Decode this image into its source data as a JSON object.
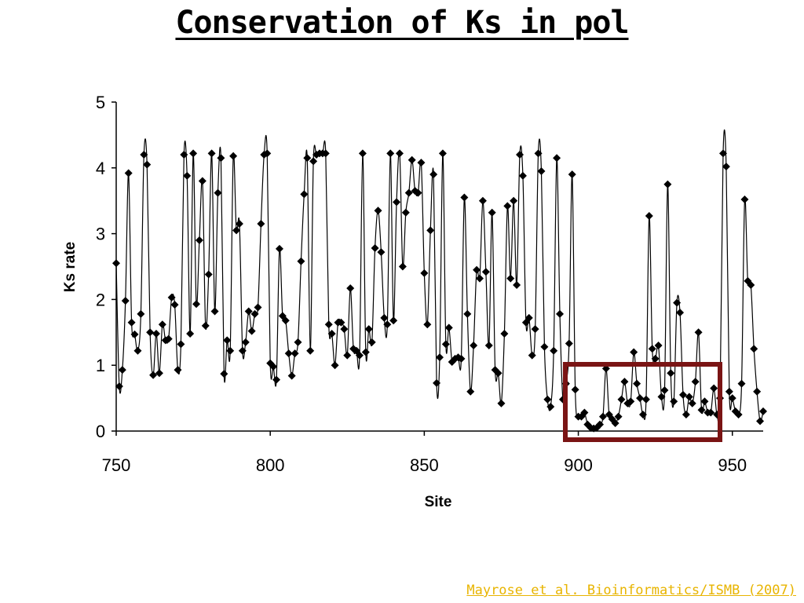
{
  "slide": {
    "title": "Conservation of Ks in pol",
    "citation": "Mayrose et al. Bioinformatics/ISMB (2007)"
  },
  "colors": {
    "series": "#000000",
    "highlight_box": "#7a1414",
    "citation": "#e8b400"
  },
  "chart_data": {
    "type": "line",
    "xlabel": "Site",
    "ylabel": "Ks rate",
    "xlim": [
      750,
      960
    ],
    "ylim": [
      0,
      5
    ],
    "xticks": [
      750,
      800,
      850,
      900,
      950
    ],
    "yticks": [
      0,
      1,
      2,
      3,
      4,
      5
    ],
    "grid": false,
    "legend": "none",
    "marker": "diamond",
    "series": [
      {
        "x_start": 750,
        "x_step": 1,
        "values": [
          2.55,
          0.68,
          0.93,
          1.98,
          3.92,
          1.65,
          1.47,
          1.22,
          1.78,
          4.2,
          4.05,
          1.5,
          0.85,
          1.48,
          0.88,
          1.62,
          1.38,
          1.4,
          2.03,
          1.92,
          0.93,
          1.32,
          4.2,
          3.88,
          1.48,
          4.22,
          1.93,
          2.9,
          3.8,
          1.6,
          2.38,
          4.22,
          1.82,
          3.62,
          4.15,
          0.87,
          1.38,
          1.22,
          4.18,
          3.05,
          3.15,
          1.22,
          1.35,
          1.82,
          1.52,
          1.78,
          1.88,
          3.15,
          4.2,
          4.22,
          1.03,
          0.98,
          0.78,
          2.77,
          1.75,
          1.68,
          1.18,
          0.84,
          1.18,
          1.35,
          2.58,
          3.6,
          4.15,
          1.22,
          4.1,
          4.2,
          4.22,
          4.22,
          4.22,
          1.62,
          1.48,
          1.0,
          1.65,
          1.65,
          1.55,
          1.15,
          2.17,
          1.25,
          1.22,
          1.15,
          4.22,
          1.2,
          1.55,
          1.35,
          2.78,
          3.35,
          2.72,
          1.72,
          1.62,
          4.22,
          1.68,
          3.48,
          4.22,
          2.5,
          3.32,
          3.62,
          4.12,
          3.65,
          3.62,
          4.08,
          2.4,
          1.62,
          3.05,
          3.9,
          0.73,
          1.12,
          4.22,
          1.32,
          1.57,
          1.05,
          1.1,
          1.12,
          1.1,
          3.55,
          1.78,
          0.6,
          1.3,
          2.45,
          2.32,
          3.5,
          2.42,
          1.3,
          3.32,
          0.93,
          0.88,
          0.42,
          1.48,
          3.42,
          2.32,
          3.5,
          2.22,
          4.2,
          3.88,
          1.65,
          1.72,
          1.15,
          1.55,
          4.22,
          3.95,
          1.28,
          0.48,
          0.37,
          1.22,
          4.15,
          1.78,
          0.48,
          0.72,
          1.33,
          3.9,
          0.63,
          0.22,
          0.22,
          0.28,
          0.1,
          0.05,
          0.04,
          0.05,
          0.1,
          0.22,
          0.95,
          0.25,
          0.18,
          0.12,
          0.22,
          0.48,
          0.75,
          0.42,
          0.45,
          1.2,
          0.72,
          0.5,
          0.25,
          0.48,
          3.27,
          1.25,
          1.1,
          1.3,
          0.52,
          0.62,
          3.75,
          0.88,
          0.45,
          1.95,
          1.8,
          0.55,
          0.25,
          0.52,
          0.42,
          0.75,
          1.5,
          0.32,
          0.45,
          0.28,
          0.28,
          0.65,
          0.25,
          0.5,
          4.22,
          4.02,
          0.6,
          0.5,
          0.3,
          0.25,
          0.72,
          3.52,
          2.28,
          2.22,
          1.25,
          0.6,
          0.15,
          0.3
        ]
      }
    ]
  }
}
